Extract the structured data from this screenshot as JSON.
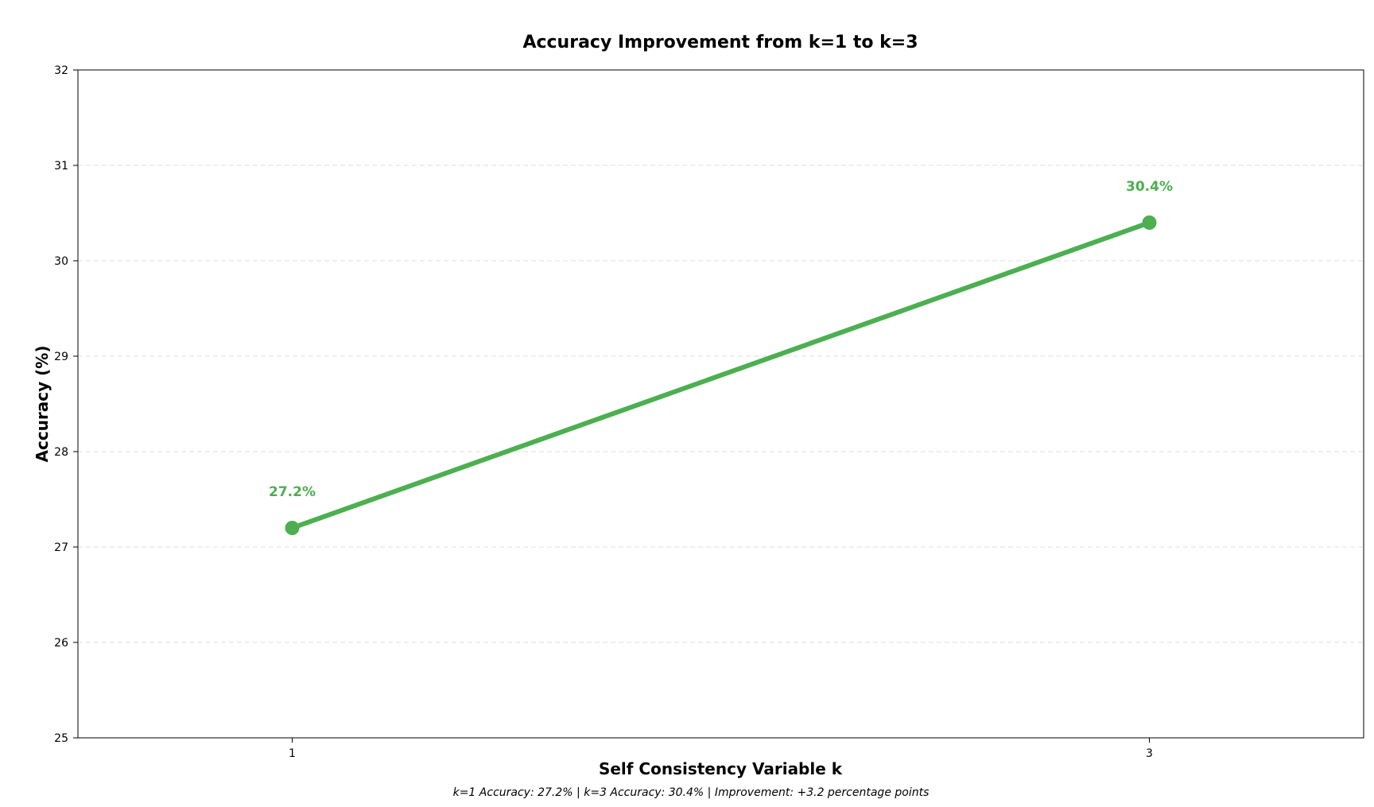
{
  "chart_data": {
    "type": "line",
    "title": "Accuracy Improvement from k=1 to k=3",
    "xlabel": "Self Consistency Variable k",
    "ylabel": "Accuracy (%)",
    "x": [
      1,
      3
    ],
    "x_tick_labels": [
      "1",
      "3"
    ],
    "xlim": [
      0.5,
      3.5
    ],
    "ylim": [
      25,
      32
    ],
    "y_ticks": [
      25,
      26,
      27,
      28,
      29,
      30,
      31,
      32
    ],
    "grid": true,
    "legend": "none",
    "series": [
      {
        "values": [
          27.2,
          30.4
        ],
        "data_labels": [
          "27.2%",
          "30.4%"
        ],
        "color": "#4caf50"
      }
    ],
    "caption": "k=1 Accuracy: 27.2% | k=3 Accuracy: 30.4% | Improvement: +3.2 percentage points"
  }
}
